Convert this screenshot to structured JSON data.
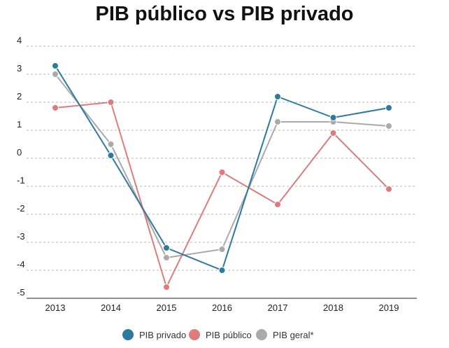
{
  "chart_data": {
    "type": "line",
    "title": "PIB público vs PIB privado",
    "x": [
      "2013",
      "2014",
      "2015",
      "2016",
      "2017",
      "2018",
      "2019"
    ],
    "ylim": [
      -5,
      4
    ],
    "yticks": [
      "4",
      "3",
      "2",
      "1",
      "0",
      "-1",
      "-2",
      "-3",
      "-4",
      "-5"
    ],
    "grid": "horizontal dashed",
    "legend": "bottom-center",
    "series": [
      {
        "name": "PIB privado",
        "color": "#2e7a9e",
        "values": [
          3.3,
          0.1,
          -3.2,
          -4.0,
          2.2,
          1.45,
          1.8
        ]
      },
      {
        "name": "PIB público",
        "color": "#e07b7b",
        "values": [
          1.8,
          2.0,
          -4.6,
          -0.5,
          -1.65,
          0.9,
          -1.1
        ]
      },
      {
        "name": "PIB geral*",
        "color": "#aaaaaa",
        "values": [
          3.0,
          0.5,
          -3.55,
          -3.25,
          1.3,
          1.3,
          1.15
        ]
      }
    ]
  }
}
